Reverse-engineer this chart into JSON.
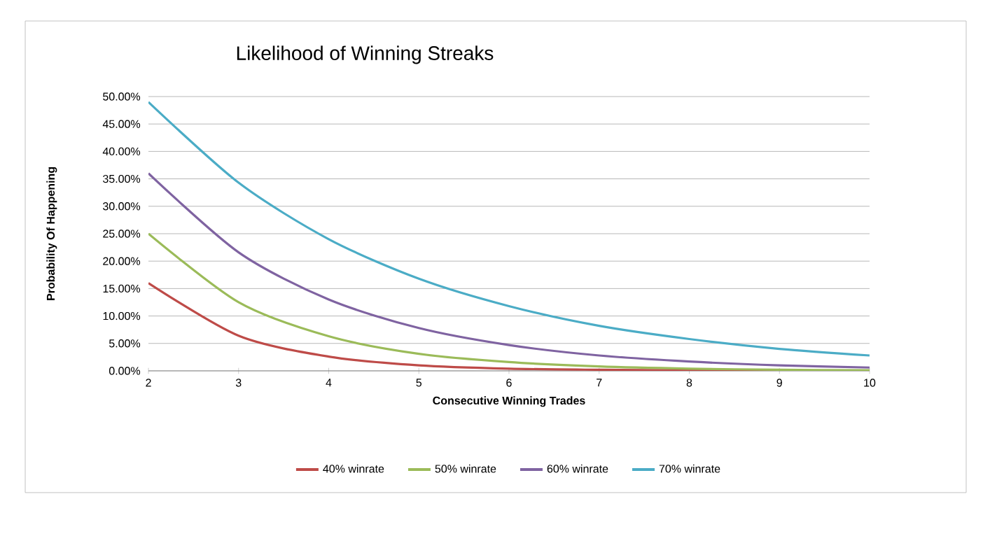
{
  "chart_data": {
    "type": "line",
    "title": "Likelihood of Winning Streaks",
    "xlabel": "Consecutive Winning Trades",
    "ylabel": "Probability Of Happening",
    "x": [
      2,
      3,
      4,
      5,
      6,
      7,
      8,
      9,
      10
    ],
    "series": [
      {
        "name": "40% winrate",
        "color": "#be4b48",
        "values": [
          16,
          6.4,
          2.6,
          1,
          0.4,
          0.2,
          0.1,
          0,
          0
        ]
      },
      {
        "name": "50% winrate",
        "color": "#9bbb59",
        "values": [
          25,
          12.5,
          6.3,
          3.1,
          1.6,
          0.8,
          0.4,
          0.2,
          0.1
        ]
      },
      {
        "name": "60% winrate",
        "color": "#7f63a1",
        "values": [
          36,
          21.6,
          13,
          7.8,
          4.7,
          2.8,
          1.7,
          1,
          0.6
        ]
      },
      {
        "name": "70% winrate",
        "color": "#4bacc6",
        "values": [
          49,
          34.3,
          24,
          16.8,
          11.8,
          8.2,
          5.8,
          4,
          2.8
        ]
      }
    ],
    "xlim": [
      2,
      10
    ],
    "xticks": [
      2,
      3,
      4,
      5,
      6,
      7,
      8,
      9,
      10
    ],
    "ylim": [
      0,
      50
    ],
    "yticks": [
      {
        "value": 0,
        "label": "0.00%"
      },
      {
        "value": 5,
        "label": "5.00%"
      },
      {
        "value": 10,
        "label": "10.00%"
      },
      {
        "value": 15,
        "label": "15.00%"
      },
      {
        "value": 20,
        "label": "20.00%"
      },
      {
        "value": 25,
        "label": "25.00%"
      },
      {
        "value": 30,
        "label": "30.00%"
      },
      {
        "value": 35,
        "label": "35.00%"
      },
      {
        "value": 40,
        "label": "40.00%"
      },
      {
        "value": 45,
        "label": "45.00%"
      },
      {
        "value": 50,
        "label": "50.00%"
      }
    ],
    "grid": "y",
    "legend": "bottom",
    "marker": "none",
    "line_style": "solid"
  }
}
